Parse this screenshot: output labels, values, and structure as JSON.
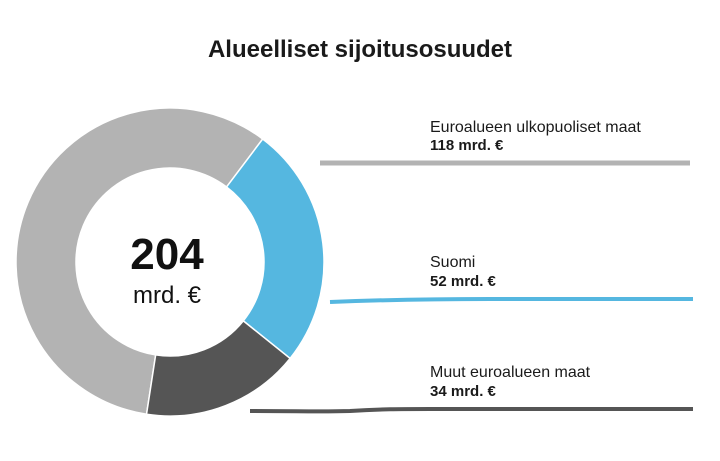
{
  "chart_data": {
    "type": "pie",
    "title": "Alueelliset sijoitusosuudet",
    "center_total": "204",
    "center_unit": "mrd. €",
    "unit": "mrd. €",
    "categories": [
      "Euroalueen ulkopuoliset maat",
      "Suomi",
      "Muut euroalueen maat"
    ],
    "values": [
      118,
      52,
      34
    ],
    "value_labels": [
      "118 mrd. €",
      "52 mrd. €",
      "34 mrd. €"
    ],
    "colors": [
      "#b3b3b3",
      "#55b7e0",
      "#555555"
    ],
    "legend_position": "right"
  }
}
